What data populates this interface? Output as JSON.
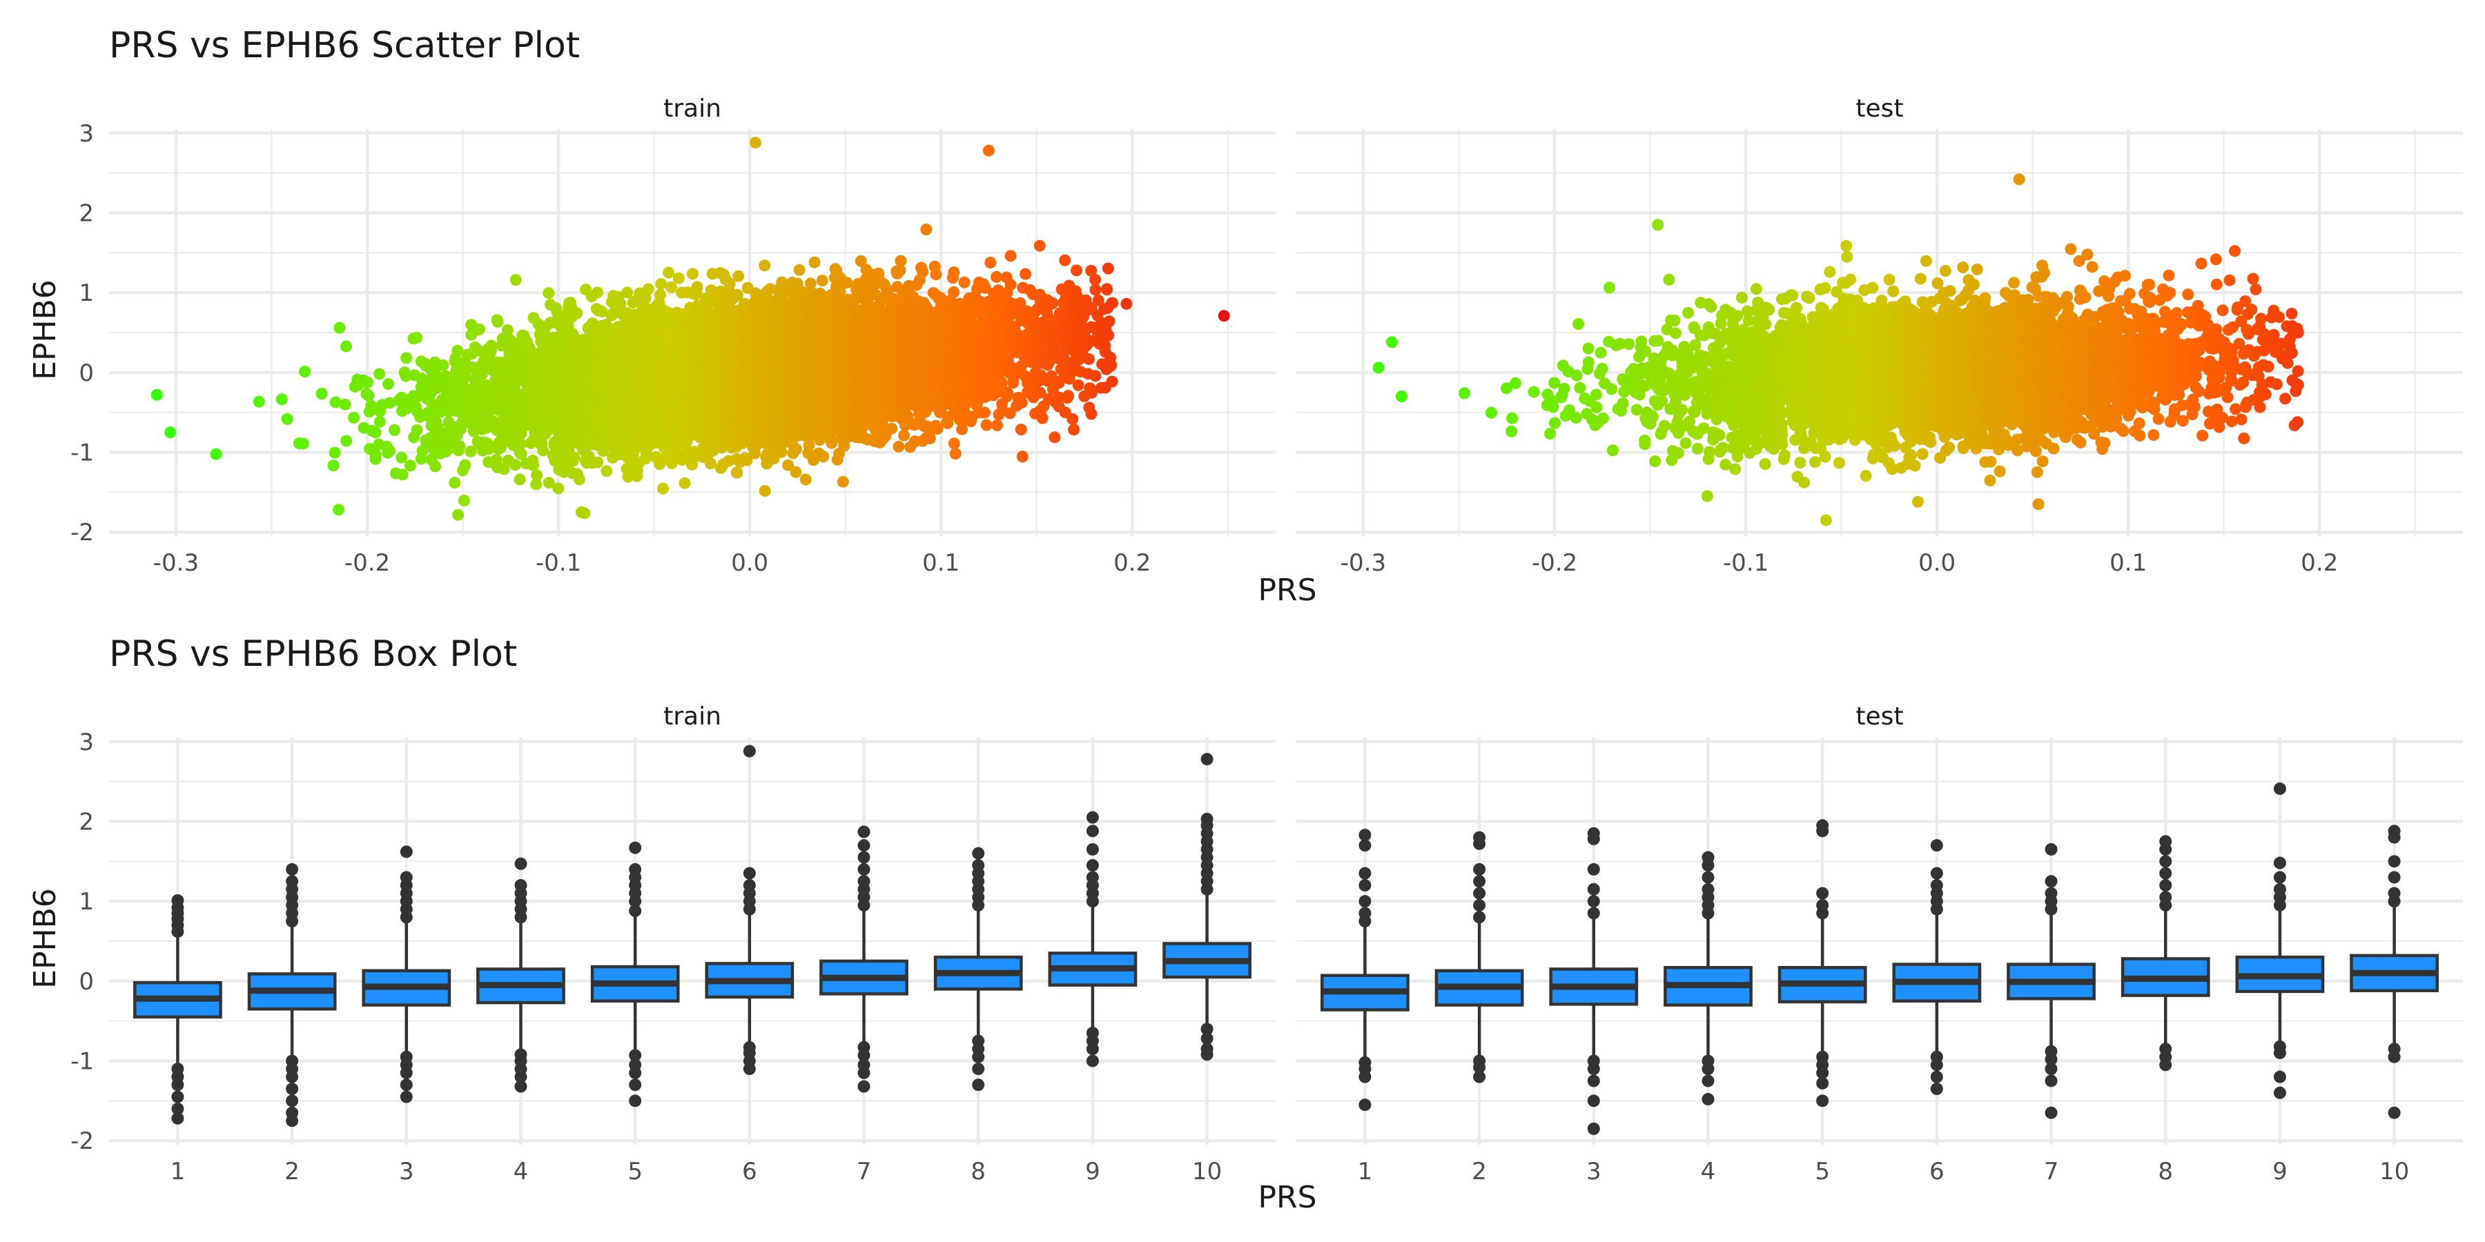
{
  "colors": {
    "low": "#33ff00",
    "mid": "#cccc00",
    "high": "#ff6600",
    "extreme": "#e81010",
    "box_fill": "#1e90ff",
    "box_line": "#333333",
    "outlier": "#333333"
  },
  "panels": [
    "train",
    "test"
  ],
  "chart_data": [
    {
      "type": "scatter",
      "title": "PRS vs EPHB6 Scatter Plot",
      "xlabel": "PRS",
      "ylabel": "EPHB6",
      "facets": [
        "train",
        "test"
      ],
      "xlim": [
        -0.335,
        0.275
      ],
      "ylim": [
        -2.05,
        3.05
      ],
      "x_ticks": [
        -0.3,
        -0.2,
        -0.1,
        0.0,
        0.1,
        0.2
      ],
      "x_tick_labels": [
        "-0.3",
        "-0.2",
        "-0.1",
        "0.0",
        "0.1",
        "0.2"
      ],
      "y_ticks": [
        -2,
        -1,
        0,
        1,
        2,
        3
      ],
      "y_tick_labels": [
        "-2",
        "-1",
        "0",
        "1",
        "2",
        "3"
      ],
      "color_by": "PRS",
      "trend": {
        "train": {
          "slope": 2.2,
          "center_y": 0.0
        },
        "test": {
          "slope": 1.1,
          "center_y": 0.0
        }
      },
      "notable_points": {
        "train": [
          [
            0.248,
            0.71
          ],
          [
            0.197,
            0.86
          ],
          [
            0.184,
            0.62
          ],
          [
            0.125,
            2.78
          ],
          [
            0.003,
            2.88
          ],
          [
            -0.31,
            -0.28
          ],
          [
            -0.303,
            -0.75
          ],
          [
            -0.215,
            -1.72
          ],
          [
            -0.088,
            -1.75
          ],
          [
            0.165,
            -0.5
          ]
        ],
        "test": [
          [
            0.17,
            -0.15
          ],
          [
            0.153,
            0.3
          ],
          [
            0.043,
            2.42
          ],
          [
            -0.292,
            0.06
          ],
          [
            -0.285,
            0.38
          ],
          [
            -0.058,
            -1.85
          ],
          [
            0.053,
            -1.65
          ],
          [
            -0.146,
            1.85
          ],
          [
            -0.01,
            -1.62
          ],
          [
            -0.28,
            -0.3
          ]
        ]
      }
    },
    {
      "type": "box",
      "title": "PRS vs EPHB6 Box Plot",
      "xlabel": "PRS",
      "ylabel": "EPHB6",
      "facets": [
        "train",
        "test"
      ],
      "categories": [
        "1",
        "2",
        "3",
        "4",
        "5",
        "6",
        "7",
        "8",
        "9",
        "10"
      ],
      "ylim": [
        -2.05,
        3.05
      ],
      "y_ticks": [
        -2,
        -1,
        0,
        1,
        2,
        3
      ],
      "y_tick_labels": [
        "-2",
        "-1",
        "0",
        "1",
        "2",
        "3"
      ],
      "series": [
        {
          "facet": "train",
          "q1": [
            -0.45,
            -0.35,
            -0.3,
            -0.27,
            -0.25,
            -0.2,
            -0.16,
            -0.1,
            -0.05,
            0.05
          ],
          "median": [
            -0.22,
            -0.12,
            -0.07,
            -0.05,
            -0.03,
            0.0,
            0.04,
            0.1,
            0.16,
            0.25
          ],
          "q3": [
            -0.02,
            0.09,
            0.13,
            0.15,
            0.18,
            0.22,
            0.25,
            0.3,
            0.35,
            0.47
          ],
          "whisker_low": [
            -1.05,
            -0.93,
            -0.9,
            -0.87,
            -0.88,
            -0.78,
            -0.78,
            -0.7,
            -0.6,
            -0.55
          ],
          "whisker_high": [
            0.58,
            0.68,
            0.75,
            0.75,
            0.82,
            0.85,
            0.88,
            0.9,
            0.95,
            1.08
          ],
          "outliers": [
            [
              0.62,
              0.7,
              0.78,
              0.85,
              0.92,
              1.01,
              -1.1,
              -1.2,
              -1.3,
              -1.45,
              -1.6,
              -1.72
            ],
            [
              0.75,
              0.85,
              0.95,
              1.05,
              1.15,
              1.25,
              1.4,
              -1.0,
              -1.1,
              -1.2,
              -1.35,
              -1.5,
              -1.65,
              -1.75
            ],
            [
              0.8,
              0.9,
              1.0,
              1.1,
              1.2,
              1.3,
              1.62,
              -0.95,
              -1.05,
              -1.15,
              -1.3,
              -1.45
            ],
            [
              0.8,
              0.9,
              1.0,
              1.1,
              1.2,
              1.47,
              -0.92,
              -1.0,
              -1.1,
              -1.2,
              -1.32
            ],
            [
              0.88,
              1.0,
              1.1,
              1.2,
              1.3,
              1.4,
              1.67,
              -0.93,
              -1.05,
              -1.15,
              -1.3,
              -1.5
            ],
            [
              0.9,
              1.0,
              1.1,
              1.2,
              1.35,
              2.88,
              -0.83,
              -0.9,
              -1.0,
              -1.1
            ],
            [
              0.95,
              1.05,
              1.15,
              1.25,
              1.4,
              1.55,
              1.7,
              1.87,
              -0.83,
              -0.93,
              -1.05,
              -1.15,
              -1.32
            ],
            [
              0.95,
              1.05,
              1.15,
              1.25,
              1.35,
              1.45,
              1.6,
              -0.75,
              -0.85,
              -0.95,
              -1.1,
              -1.3
            ],
            [
              1.0,
              1.1,
              1.2,
              1.3,
              1.45,
              1.65,
              1.88,
              2.05,
              -0.65,
              -0.75,
              -0.85,
              -1.0
            ],
            [
              1.15,
              1.25,
              1.35,
              1.45,
              1.55,
              1.65,
              1.75,
              1.85,
              1.95,
              2.03,
              2.78,
              -0.6,
              -0.72,
              -0.85,
              -0.92
            ]
          ]
        },
        {
          "facet": "test",
          "q1": [
            -0.36,
            -0.3,
            -0.29,
            -0.3,
            -0.26,
            -0.25,
            -0.22,
            -0.18,
            -0.13,
            -0.12
          ],
          "median": [
            -0.13,
            -0.07,
            -0.07,
            -0.05,
            -0.03,
            -0.01,
            -0.01,
            0.03,
            0.06,
            0.1
          ],
          "q3": [
            0.07,
            0.13,
            0.15,
            0.17,
            0.17,
            0.21,
            0.21,
            0.28,
            0.3,
            0.32
          ],
          "whisker_low": [
            -0.98,
            -0.95,
            -0.95,
            -0.95,
            -0.92,
            -0.9,
            -0.82,
            -0.8,
            -0.78,
            -0.8
          ],
          "whisker_high": [
            0.7,
            0.75,
            0.78,
            0.8,
            0.8,
            0.85,
            0.85,
            0.88,
            0.9,
            0.95
          ],
          "outliers": [
            [
              0.75,
              0.85,
              1.0,
              1.2,
              1.35,
              1.7,
              1.83,
              -1.02,
              -1.1,
              -1.2,
              -1.55
            ],
            [
              0.8,
              0.95,
              1.1,
              1.25,
              1.4,
              1.72,
              1.8,
              -1.0,
              -1.08,
              -1.2
            ],
            [
              0.85,
              1.0,
              1.15,
              1.4,
              1.78,
              1.85,
              -1.0,
              -1.1,
              -1.25,
              -1.5,
              -1.85
            ],
            [
              0.85,
              0.95,
              1.05,
              1.15,
              1.3,
              1.45,
              1.55,
              -1.0,
              -1.1,
              -1.25,
              -1.48
            ],
            [
              0.85,
              0.95,
              1.1,
              1.88,
              1.95,
              -0.95,
              -1.05,
              -1.15,
              -1.28,
              -1.5
            ],
            [
              0.9,
              1.0,
              1.1,
              1.2,
              1.35,
              1.7,
              -0.95,
              -1.05,
              -1.2,
              -1.35
            ],
            [
              0.9,
              1.0,
              1.1,
              1.25,
              1.65,
              -0.88,
              -0.98,
              -1.1,
              -1.25,
              -1.65
            ],
            [
              0.95,
              1.05,
              1.2,
              1.35,
              1.5,
              1.65,
              1.75,
              -0.85,
              -0.95,
              -1.05
            ],
            [
              0.95,
              1.05,
              1.15,
              1.3,
              1.48,
              2.41,
              -0.82,
              -0.9,
              -1.2,
              -1.4
            ],
            [
              1.0,
              1.1,
              1.3,
              1.5,
              1.8,
              1.88,
              -0.85,
              -0.95,
              -1.65
            ]
          ]
        }
      ]
    }
  ]
}
